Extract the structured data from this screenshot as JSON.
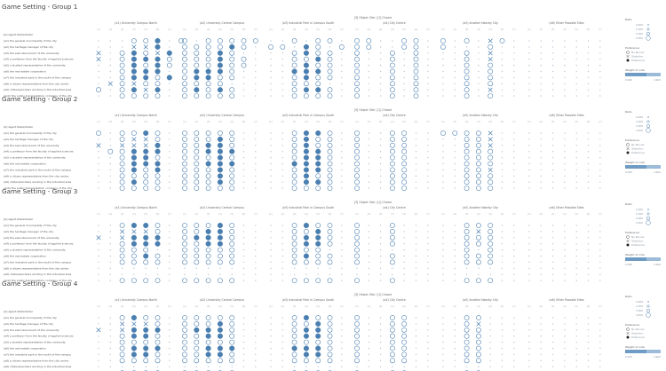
{
  "colors": {
    "mark": "#4a7fb0",
    "grid_text": "#aab3bd",
    "bar": "#6f9cc4"
  },
  "legend": {
    "ratio_title": "Ratio",
    "ratio_values": [
      "0.000",
      "1.500",
      "3.000",
      "4.500"
    ],
    "pref_title": "Preference",
    "pref_items": [
      "No Runner",
      "Objection",
      "Preference"
    ],
    "weight_title": "Weight of vote",
    "weight_min": "0.000",
    "weight_max": "4.900"
  },
  "chart_data": {
    "type": "scatter",
    "sub_labels": [
      "(1)",
      "(2)",
      "(3)",
      "(4)",
      "(5)",
      "(6)",
      "(7)"
    ],
    "site_header": "[3] Object Site / [1] Choice",
    "shape_legend": {
      "o": "Preference",
      "x": "Objection"
    },
    "panels": [
      {
        "title": "Game Setting - Group 1",
        "row_header": "[A] Agent-Stakeholder",
        "columns": [
          "(a1) University Campus North",
          "(a2) University Central Campus",
          "(a3) Industrial Park in Campus South",
          "(a4) City Centre",
          "(a5) Another Nearby City",
          "(a6) Other Possible Sites"
        ],
        "rows": [
          "(a1) the general municipality of the city",
          "(a2) the heritage manager of the city",
          "(a3) the executive board of the university",
          "(a4) a professor from the faculty of applied sciences",
          "(a5) a student representative of the university",
          "(a6) the real estate cooperation",
          "(a7) the industrial park in the south of the campus",
          "(a8) a citizen representative from the city centre",
          "(a9) citizens/workers working in the industrial area",
          "(a10) the public transportation company of the city"
        ],
        "cells": [
          [
            "...ooO.o",
            "o.ooooo",
            "..o.oo.",
            "oo..oo.",
            "o.o.xo.",
            "......."
          ],
          [
            "...xxO.",
            "ooooOo.",
            "oo.Oo.o",
            "oo..oo.",
            "o...o..",
            "......."
          ],
          [
            "x.oOoxO",
            "oooOo..",
            "..oOoo.",
            "o..o.o.",
            "..o.x..",
            "......."
          ],
          [
            "x.oOOOo",
            "oooOoo.",
            "..ooOo.",
            "o..o.o.",
            "..o.x..",
            "......."
          ],
          [
            "..oOoOo",
            "oooOoo.",
            "..oOoo.",
            "o..o.o.",
            "..o.o..",
            "......."
          ],
          [
            "..oOOO.",
            "oOOOo..",
            "..OOOo.",
            "o..o.o.",
            "..o.o..",
            "......."
          ],
          [
            "..oOOoO",
            "oOOoo..",
            "..oOoo.",
            "o..o.o.",
            "..o.o..",
            "......."
          ],
          [
            ".xoxoo.",
            "oooo...",
            "..ooo..",
            "o..o.o.",
            "..o.o..",
            "......."
          ],
          [
            "o.oOxO.",
            "oOoOo..",
            "..oOOo.",
            "o..o.o.",
            "..o.x..",
            "......."
          ],
          [
            "..oooo.",
            "ooooo..",
            "..oooo.",
            "o..o.o.",
            "..o.o..",
            "......."
          ]
        ]
      },
      {
        "title": "Game Setting - Group 2",
        "row_header": "[A] Agent-Stakeholder",
        "columns": [
          "(a1) University Campus North",
          "(a2) University Central Campus",
          "(a3) Industrial Park in Campus South",
          "(a4) City Centre",
          "(a5) Another Nearby City",
          "(a6) Other Possible Sites"
        ],
        "rows": [
          "(a1) the general municipality of the city",
          "(a2) the heritage manager of the city",
          "(a3) the executive board of the university",
          "(a4) a professor from the faculty of applied sciences",
          "(a5) a student representative of the university",
          "(a6) the real estate cooperation",
          "(a7) the industrial park in the south of the campus",
          "(a8) a citizen representative from the city centre",
          "(a9) citizens/workers working in the industrial area",
          "(a10) the public transportation company of the city"
        ],
        "cells": [
          [
            "o.ooOo.",
            "ooooo..",
            "..oOOo.",
            "o..oo..",
            "oooox..",
            "......."
          ],
          [
            "..oxxo.",
            "oooOo..",
            "..oOoo.",
            "o..oo..",
            "..oox..",
            "......."
          ],
          [
            "x.xxxO.",
            "ooOOo..",
            "..oOoo.",
            "o..oo..",
            "..oox..",
            "......."
          ],
          [
            ".ooOOO.",
            "ooOOO..",
            "..oOOo.",
            "o..oo..",
            "..ooo..",
            "......."
          ],
          [
            "..oOOo.",
            "oooOo..",
            "..oOOo.",
            "o..oo..",
            "..ooo..",
            "......."
          ],
          [
            "..oOOO.",
            "ooOOO..",
            "..OOOo.",
            "o..oo..",
            "..ooo..",
            "......."
          ],
          [
            "..oOoO.",
            "oooOo..",
            "..oOOo.",
            "o..oo..",
            "..oox..",
            "......."
          ],
          [
            "..oooo.",
            "oooOo..",
            "..oOoo.",
            "o..oo..",
            "..ooo..",
            "......."
          ],
          [
            "..oOoo.",
            "oooOo..",
            "..oOOo.",
            "o..oo..",
            "..ooo..",
            "......."
          ],
          [
            "..oooo.",
            "ooooo..",
            "..oooo.",
            "o..oo..",
            "..ooo..",
            "......."
          ]
        ]
      },
      {
        "title": "Game Setting - Group 3",
        "row_header": "[A] Agent-Stakeholder",
        "columns": [
          "(a1) University Campus North",
          "(a2) University Central Campus",
          "(a3) Industrial Park in Campus South",
          "(a4) City Centre",
          "(a5) Another Nearby City",
          "(a6) Other Possible Sites"
        ],
        "rows": [
          "(a1) the general municipality of the city",
          "(a2) the heritage manager of the city",
          "(a3) the executive board of the university",
          "(a4) a professor from the faculty of applied sciences",
          "(a5) a student representative of the university",
          "(a6) the real estate cooperation",
          "(a7) the industrial park in the south of the campus",
          "(a8) a citizen representative from the city centre",
          "(a9) citizens/workers working in the industrial area",
          "(a10) the public transportation company of the city"
        ],
        "cells": [
          [
            "..oOOo.",
            "oooOo..",
            "..oOoo.",
            "o..o...",
            "..ooo..",
            "......."
          ],
          [
            "..xxxo.",
            "ooOOo..",
            "..ooOo.",
            "o..o...",
            "..oxo..",
            "......."
          ],
          [
            "x.xOOO.",
            "oOOOo..",
            "..oOOo.",
            "o..o...",
            "..ooo..",
            "......."
          ],
          [
            "..oOOO.",
            "ooOOo..",
            "..oOOo.",
            "o..o...",
            "..ooo..",
            "......."
          ],
          [
            "..ooo..",
            "ooooo..",
            "..ooo..",
            "o......",
            "..o.o..",
            "......."
          ],
          [
            "..ooOo.",
            "ooooo..",
            "..oOoo.",
            "o..o...",
            "..ooo..",
            "......."
          ],
          [
            "..oooo.",
            "ooooo..",
            "..oooo.",
            "o..o...",
            "..ooo..",
            "......."
          ],
          [
            ".......",
            ".......",
            ".......",
            ".......",
            ".......",
            "......."
          ],
          [
            ".......",
            ".......",
            ".......",
            ".......",
            ".......",
            "......."
          ],
          [
            "..oooo.",
            "ooooo..",
            "..oooo.",
            "o..o...",
            "..ooo..",
            "......."
          ]
        ]
      },
      {
        "title": "Game Setting - Group 4",
        "row_header": "[A] Agent-Stakeholder",
        "columns": [
          "(a1) University Campus North",
          "(a2) University Central Campus",
          "(a3) Industrial Park in Campus South",
          "(a4) City Centre",
          "(a5) Another Nearby City",
          "(a6) Other Possible Sites"
        ],
        "rows": [
          "(a1) the general municipality of the city",
          "(a2) the heritage manager of the city",
          "(a3) the executive board of the university",
          "(a4) a professor from the faculty of applied sciences",
          "(a5) a student representative of the university",
          "(a6) the real estate cooperation",
          "(a7) the industrial park in the south of the campus",
          "(a8) a citizen representative from the city centre",
          "(a9) citizens/workers working in the industrial area",
          "(a10) the public transportation company of the city"
        ],
        "cells": [
          [
            "..oOoo.",
            "ooooo..",
            "..oOoo.",
            "o..oo..",
            "..oo...",
            "......."
          ],
          [
            "..xxxo.",
            "oooOo..",
            "..ooOo.",
            "o..oo..",
            "..ox...",
            "......."
          ],
          [
            "x.xOOO.",
            "oOOOo..",
            "..oOOo.",
            "o..oo..",
            "..oo...",
            "......."
          ],
          [
            "..oOOo.",
            "ooOOo..",
            "..oOOo.",
            "o..oo..",
            "..oo...",
            "......."
          ],
          [
            "..oooo.",
            "ooooo..",
            "..oooo.",
            "o..oo..",
            "..oo...",
            "......."
          ],
          [
            "..oOOO.",
            "ooOOO..",
            "..OOOo.",
            "o..oo..",
            "..oo...",
            "......."
          ],
          [
            "..oOOo.",
            "ooOOo..",
            "..oOOo.",
            "o..oo..",
            "..oo...",
            "......."
          ],
          [
            "..oooo.",
            "ooooo..",
            "..oooo.",
            "o..oo..",
            "..oo...",
            "......."
          ],
          [
            ".......",
            ".......",
            ".......",
            ".......",
            ".......",
            "......."
          ],
          [
            "..oooo.",
            "ooooo..",
            "..oooo.",
            "o..oo..",
            "..oo...",
            "......."
          ]
        ]
      }
    ]
  }
}
